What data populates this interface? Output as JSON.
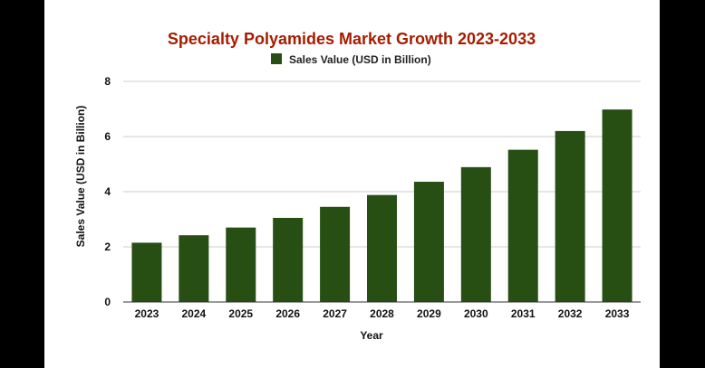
{
  "chart_data": {
    "type": "bar",
    "title": "Specialty Polyamides Market Growth 2023-2033",
    "xlabel": "Year",
    "ylabel": "Sales Value (USD in Billion)",
    "categories": [
      "2023",
      "2024",
      "2025",
      "2026",
      "2027",
      "2028",
      "2029",
      "2030",
      "2031",
      "2032",
      "2033"
    ],
    "series": [
      {
        "name": "Sales Value (USD in Billion)",
        "values": [
          2.15,
          2.42,
          2.7,
          3.05,
          3.45,
          3.88,
          4.36,
          4.89,
          5.52,
          6.2,
          6.98
        ]
      }
    ],
    "ylim": [
      0,
      8
    ],
    "yticks": [
      "0",
      "2",
      "4",
      "6",
      "8"
    ],
    "grid": true,
    "legend_position": "top-center",
    "colors": {
      "bar": "#274e13",
      "title": "#a61c00",
      "grid": "#cccccc",
      "axis": "#333333"
    }
  }
}
